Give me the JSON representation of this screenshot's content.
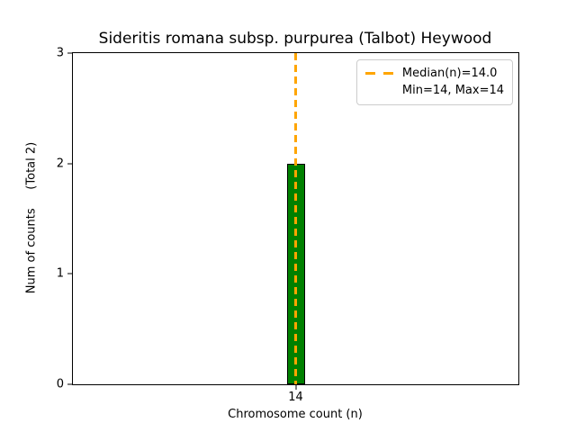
{
  "chart_data": {
    "type": "bar",
    "title": "Sideritis romana subsp. purpurea (Talbot) Heywood",
    "xlabel": "Chromosome count (n)",
    "ylabel": "Num of counts     (Total 2)",
    "categories": [
      "14"
    ],
    "values": [
      2
    ],
    "total_counts": 2,
    "ylim": [
      0,
      3
    ],
    "yticks": [
      0,
      1,
      2,
      3
    ],
    "grid": false,
    "bar_color": "#008000",
    "bar_edge_color": "#000000",
    "median_line": {
      "value": 14.0,
      "color": "#FFA500",
      "style": "dashed"
    },
    "legend": {
      "position": "upper right",
      "entries": [
        "Median(n)=14.0",
        "Min=14, Max=14"
      ]
    }
  }
}
